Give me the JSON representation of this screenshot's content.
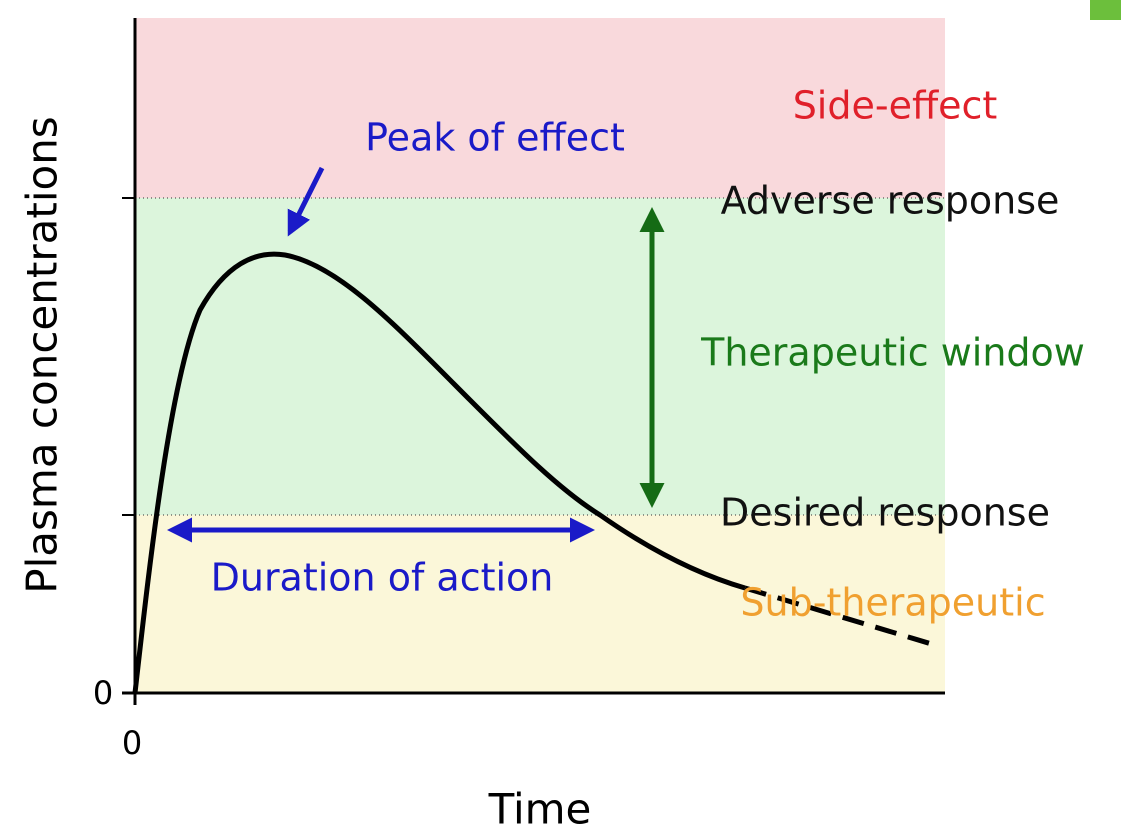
{
  "y_axis": {
    "label": "Plasma concentrations",
    "origin": "0"
  },
  "x_axis": {
    "label": "Time",
    "origin": "0"
  },
  "zones": {
    "upper": "Side-effect",
    "lower": "Sub-therapeutic"
  },
  "thresholds": {
    "upper": "Adverse response",
    "lower": "Desired response"
  },
  "annotations": {
    "peak": "Peak of effect",
    "window": "Therapeutic window",
    "duration": "Duration of action"
  }
}
